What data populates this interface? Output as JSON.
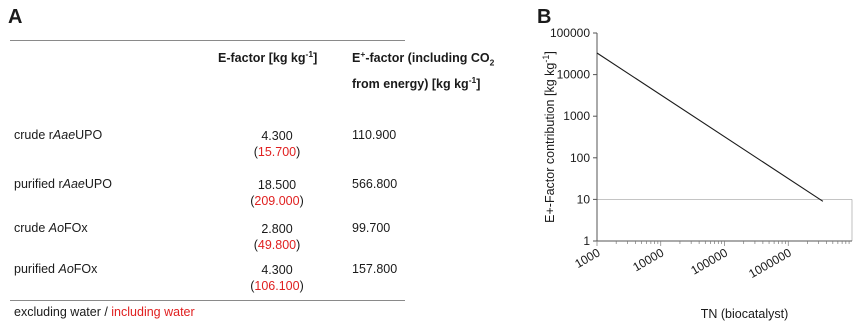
{
  "panel_a": {
    "label": "A",
    "headers": {
      "efactor": "E-factor [kg kg",
      "efactor_sup": "-1",
      "efactor_end": "]",
      "eplus_line1a": "E",
      "eplus_sup": "+",
      "eplus_line1b": "-factor (including CO",
      "eplus_sub": "2",
      "eplus_line2": "from energy) [kg kg",
      "eplus_line2_sup": "-1",
      "eplus_line2_end": "]"
    },
    "rows": [
      {
        "pre": "crude r",
        "ital": "Aae",
        "post": "UPO",
        "ef_excl": "4.300",
        "ef_incl": "15.700",
        "eplus": "110.900"
      },
      {
        "pre": "purified r",
        "ital": "Aae",
        "post": "UPO",
        "ef_excl": "18.500",
        "ef_incl": "209.000",
        "eplus": "566.800"
      },
      {
        "pre": "crude ",
        "ital": "Ao",
        "post": "FOx",
        "ef_excl": "2.800",
        "ef_incl": "49.800",
        "eplus": "99.700"
      },
      {
        "pre": "purified ",
        "ital": "Ao",
        "post": "FOx",
        "ef_excl": "4.300",
        "ef_incl": "106.100",
        "eplus": "157.800"
      }
    ],
    "paren_open": "(",
    "paren_close": ")",
    "footnote": {
      "excluding": "excluding water / ",
      "including": "including water"
    },
    "colors": {
      "red": "#e02020",
      "rule": "#8a8a8a"
    }
  },
  "chart_data": {
    "type": "line",
    "label": "B",
    "x_scale": "log",
    "y_scale": "log",
    "xlim": [
      1000,
      10000000
    ],
    "ylim": [
      1,
      100000
    ],
    "x_ticks": [
      "1000",
      "10000",
      "100000",
      "1000000"
    ],
    "y_ticks": [
      "1",
      "10",
      "100",
      "1000",
      "10000",
      "100000"
    ],
    "xlabel": "TN (biocatalyst)",
    "ylabel": "E+-Factor contribution  [kg kg",
    "ylabel_sup": "-1",
    "ylabel_end": "]",
    "series": [
      {
        "x": [
          1000,
          3500000
        ],
        "y": [
          33000,
          9
        ],
        "color": "#1a1a1a"
      }
    ],
    "reference_line": {
      "y": 10,
      "color": "#b0b0b0"
    },
    "grid": false
  }
}
